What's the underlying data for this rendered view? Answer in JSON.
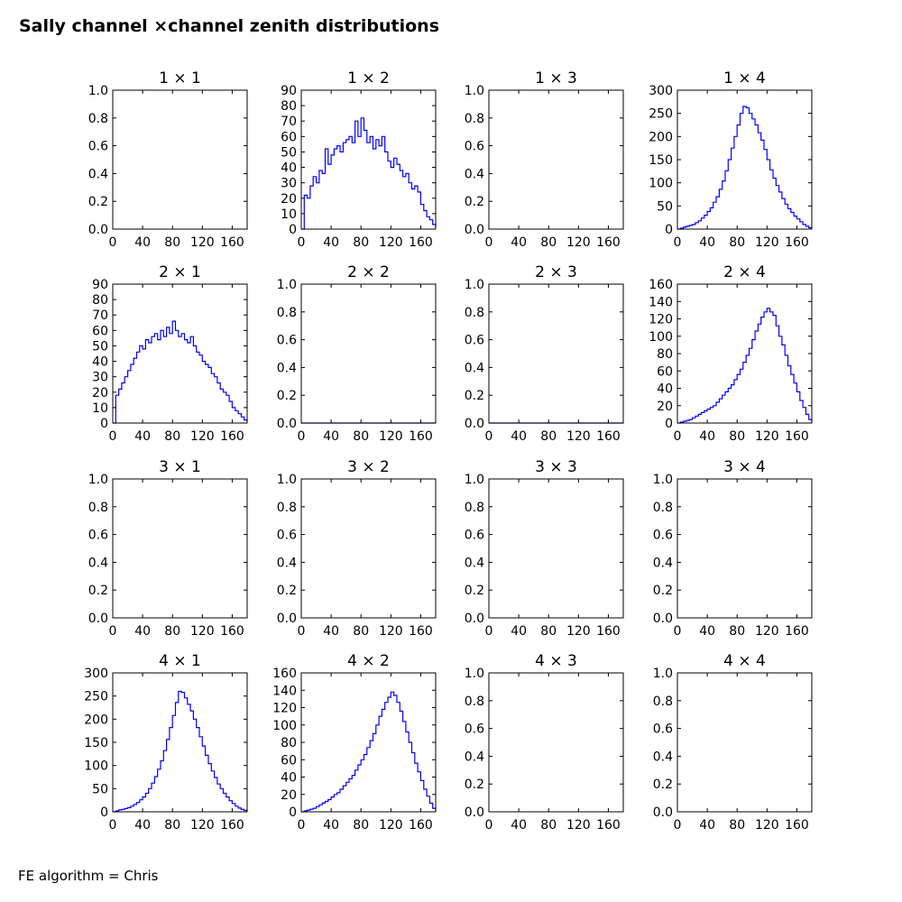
{
  "figure": {
    "title": "Sally channel ×channel zenith distributions",
    "footer": "FE algorithm = Chris"
  },
  "colors": {
    "line": "#0000ff",
    "axes": "#000000",
    "background": "#ffffff"
  },
  "chart_data": [
    {
      "type": "line",
      "title": "1  × 1",
      "xlim": [
        0,
        180
      ],
      "ylim": [
        0,
        1
      ],
      "xticks": [
        "0",
        "40",
        "80",
        "120",
        "160"
      ],
      "yticks": [
        "0.0",
        "0.2",
        "0.4",
        "0.6",
        "0.8",
        "1.0"
      ],
      "series": []
    },
    {
      "type": "line",
      "title": "1  × 2",
      "xlim": [
        0,
        180
      ],
      "ylim": [
        0,
        90
      ],
      "xticks": [
        "0",
        "40",
        "80",
        "120",
        "160"
      ],
      "yticks": [
        "0",
        "10",
        "20",
        "30",
        "40",
        "50",
        "60",
        "70",
        "80",
        "90"
      ],
      "series": [
        {
          "x": [
            0,
            4,
            8,
            12,
            16,
            20,
            24,
            28,
            32,
            36,
            40,
            44,
            48,
            52,
            56,
            60,
            64,
            68,
            72,
            76,
            80,
            84,
            88,
            92,
            96,
            100,
            104,
            108,
            112,
            116,
            120,
            124,
            128,
            132,
            136,
            140,
            144,
            148,
            152,
            156,
            160,
            164,
            168,
            172,
            176,
            180
          ],
          "values": [
            0,
            22,
            20,
            28,
            34,
            30,
            38,
            36,
            52,
            42,
            48,
            52,
            54,
            50,
            56,
            58,
            60,
            56,
            70,
            60,
            72,
            64,
            56,
            60,
            52,
            58,
            54,
            60,
            50,
            44,
            40,
            46,
            42,
            38,
            34,
            36,
            30,
            26,
            28,
            24,
            16,
            12,
            8,
            6,
            3,
            1
          ]
        }
      ]
    },
    {
      "type": "line",
      "title": "1  × 3",
      "xlim": [
        0,
        180
      ],
      "ylim": [
        0,
        1
      ],
      "xticks": [
        "0",
        "40",
        "80",
        "120",
        "160"
      ],
      "yticks": [
        "0.0",
        "0.2",
        "0.4",
        "0.6",
        "0.8",
        "1.0"
      ],
      "series": []
    },
    {
      "type": "line",
      "title": "1  × 4",
      "xlim": [
        0,
        180
      ],
      "ylim": [
        0,
        300
      ],
      "xticks": [
        "0",
        "40",
        "80",
        "120",
        "160"
      ],
      "yticks": [
        "0",
        "50",
        "100",
        "150",
        "200",
        "250",
        "300"
      ],
      "series": [
        {
          "x": [
            0,
            4,
            8,
            12,
            16,
            20,
            24,
            28,
            32,
            36,
            40,
            44,
            48,
            52,
            56,
            60,
            64,
            68,
            72,
            76,
            80,
            84,
            88,
            92,
            96,
            100,
            104,
            108,
            112,
            116,
            120,
            124,
            128,
            132,
            136,
            140,
            144,
            148,
            152,
            156,
            160,
            164,
            168,
            172,
            176,
            180
          ],
          "values": [
            0,
            2,
            4,
            6,
            8,
            10,
            14,
            18,
            24,
            30,
            38,
            46,
            58,
            70,
            86,
            104,
            126,
            150,
            175,
            200,
            225,
            250,
            265,
            262,
            250,
            238,
            225,
            208,
            192,
            172,
            150,
            128,
            110,
            94,
            80,
            66,
            54,
            44,
            36,
            28,
            22,
            16,
            10,
            6,
            3,
            1
          ]
        }
      ]
    },
    {
      "type": "line",
      "title": "2  × 1",
      "xlim": [
        0,
        180
      ],
      "ylim": [
        0,
        90
      ],
      "xticks": [
        "0",
        "40",
        "80",
        "120",
        "160"
      ],
      "yticks": [
        "0",
        "10",
        "20",
        "30",
        "40",
        "50",
        "60",
        "70",
        "80",
        "90"
      ],
      "series": [
        {
          "x": [
            0,
            4,
            8,
            12,
            16,
            20,
            24,
            28,
            32,
            36,
            40,
            44,
            48,
            52,
            56,
            60,
            64,
            68,
            72,
            76,
            80,
            84,
            88,
            92,
            96,
            100,
            104,
            108,
            112,
            116,
            120,
            124,
            128,
            132,
            136,
            140,
            144,
            148,
            152,
            156,
            160,
            164,
            168,
            172,
            176,
            180
          ],
          "values": [
            0,
            18,
            22,
            26,
            30,
            34,
            38,
            42,
            46,
            50,
            48,
            54,
            52,
            56,
            58,
            54,
            60,
            56,
            62,
            58,
            66,
            60,
            56,
            58,
            54,
            52,
            56,
            50,
            46,
            44,
            40,
            38,
            36,
            32,
            30,
            26,
            22,
            20,
            18,
            14,
            10,
            8,
            6,
            4,
            2,
            1
          ]
        }
      ]
    },
    {
      "type": "line",
      "title": "2  × 2",
      "xlim": [
        0,
        180
      ],
      "ylim": [
        0,
        1
      ],
      "xticks": [
        "0",
        "40",
        "80",
        "120",
        "160"
      ],
      "yticks": [
        "0.0",
        "0.2",
        "0.4",
        "0.6",
        "0.8",
        "1.0"
      ],
      "series": [
        {
          "x": [
            0,
            180
          ],
          "values": [
            0,
            0
          ]
        }
      ]
    },
    {
      "type": "line",
      "title": "2  × 3",
      "xlim": [
        0,
        180
      ],
      "ylim": [
        0,
        1
      ],
      "xticks": [
        "0",
        "40",
        "80",
        "120",
        "160"
      ],
      "yticks": [
        "0.0",
        "0.2",
        "0.4",
        "0.6",
        "0.8",
        "1.0"
      ],
      "series": [
        {
          "x": [
            0,
            180
          ],
          "values": [
            0,
            0
          ]
        }
      ]
    },
    {
      "type": "line",
      "title": "2  × 4",
      "xlim": [
        0,
        180
      ],
      "ylim": [
        0,
        160
      ],
      "xticks": [
        "0",
        "40",
        "80",
        "120",
        "160"
      ],
      "yticks": [
        "0",
        "20",
        "40",
        "60",
        "80",
        "100",
        "120",
        "140",
        "160"
      ],
      "series": [
        {
          "x": [
            0,
            4,
            8,
            12,
            16,
            20,
            24,
            28,
            32,
            36,
            40,
            44,
            48,
            52,
            56,
            60,
            64,
            68,
            72,
            76,
            80,
            84,
            88,
            92,
            96,
            100,
            104,
            108,
            112,
            116,
            120,
            124,
            128,
            132,
            136,
            140,
            144,
            148,
            152,
            156,
            160,
            164,
            168,
            172,
            176,
            180
          ],
          "values": [
            0,
            1,
            2,
            3,
            4,
            6,
            8,
            10,
            12,
            14,
            16,
            18,
            20,
            24,
            28,
            32,
            36,
            40,
            44,
            50,
            56,
            62,
            70,
            78,
            86,
            96,
            106,
            114,
            122,
            128,
            132,
            128,
            124,
            112,
            100,
            90,
            78,
            66,
            56,
            46,
            36,
            26,
            18,
            10,
            4,
            1
          ]
        }
      ]
    },
    {
      "type": "line",
      "title": "3  × 1",
      "xlim": [
        0,
        180
      ],
      "ylim": [
        0,
        1
      ],
      "xticks": [
        "0",
        "40",
        "80",
        "120",
        "160"
      ],
      "yticks": [
        "0.0",
        "0.2",
        "0.4",
        "0.6",
        "0.8",
        "1.0"
      ],
      "series": []
    },
    {
      "type": "line",
      "title": "3  × 2",
      "xlim": [
        0,
        180
      ],
      "ylim": [
        0,
        1
      ],
      "xticks": [
        "0",
        "40",
        "80",
        "120",
        "160"
      ],
      "yticks": [
        "0.0",
        "0.2",
        "0.4",
        "0.6",
        "0.8",
        "1.0"
      ],
      "series": []
    },
    {
      "type": "line",
      "title": "3  × 3",
      "xlim": [
        0,
        180
      ],
      "ylim": [
        0,
        1
      ],
      "xticks": [
        "0",
        "40",
        "80",
        "120",
        "160"
      ],
      "yticks": [
        "0.0",
        "0.2",
        "0.4",
        "0.6",
        "0.8",
        "1.0"
      ],
      "series": []
    },
    {
      "type": "line",
      "title": "3  × 4",
      "xlim": [
        0,
        180
      ],
      "ylim": [
        0,
        1
      ],
      "xticks": [
        "0",
        "40",
        "80",
        "120",
        "160"
      ],
      "yticks": [
        "0.0",
        "0.2",
        "0.4",
        "0.6",
        "0.8",
        "1.0"
      ],
      "series": []
    },
    {
      "type": "line",
      "title": "4  × 1",
      "xlim": [
        0,
        180
      ],
      "ylim": [
        0,
        300
      ],
      "xticks": [
        "0",
        "40",
        "80",
        "120",
        "160"
      ],
      "yticks": [
        "0",
        "50",
        "100",
        "150",
        "200",
        "250",
        "300"
      ],
      "series": [
        {
          "x": [
            0,
            4,
            8,
            12,
            16,
            20,
            24,
            28,
            32,
            36,
            40,
            44,
            48,
            52,
            56,
            60,
            64,
            68,
            72,
            76,
            80,
            84,
            88,
            92,
            96,
            100,
            104,
            108,
            112,
            116,
            120,
            124,
            128,
            132,
            136,
            140,
            144,
            148,
            152,
            156,
            160,
            164,
            168,
            172,
            176,
            180
          ],
          "values": [
            0,
            2,
            4,
            5,
            7,
            9,
            12,
            16,
            20,
            26,
            32,
            40,
            50,
            62,
            76,
            92,
            110,
            132,
            156,
            182,
            208,
            236,
            260,
            258,
            246,
            232,
            218,
            200,
            182,
            162,
            142,
            122,
            104,
            88,
            74,
            60,
            50,
            40,
            32,
            24,
            18,
            12,
            8,
            5,
            3,
            1
          ]
        }
      ]
    },
    {
      "type": "line",
      "title": "4  × 2",
      "xlim": [
        0,
        180
      ],
      "ylim": [
        0,
        160
      ],
      "xticks": [
        "0",
        "40",
        "80",
        "120",
        "160"
      ],
      "yticks": [
        "0",
        "20",
        "40",
        "60",
        "80",
        "100",
        "120",
        "140",
        "160"
      ],
      "series": [
        {
          "x": [
            0,
            4,
            8,
            12,
            16,
            20,
            24,
            28,
            32,
            36,
            40,
            44,
            48,
            52,
            56,
            60,
            64,
            68,
            72,
            76,
            80,
            84,
            88,
            92,
            96,
            100,
            104,
            108,
            112,
            116,
            120,
            124,
            128,
            132,
            136,
            140,
            144,
            148,
            152,
            156,
            160,
            164,
            168,
            172,
            176,
            180
          ],
          "values": [
            0,
            1,
            2,
            3,
            4,
            6,
            8,
            10,
            12,
            14,
            17,
            20,
            22,
            26,
            30,
            34,
            38,
            42,
            48,
            54,
            60,
            66,
            74,
            82,
            90,
            100,
            110,
            118,
            126,
            132,
            138,
            134,
            126,
            116,
            104,
            92,
            80,
            68,
            56,
            46,
            36,
            26,
            18,
            10,
            4,
            1
          ]
        }
      ]
    },
    {
      "type": "line",
      "title": "4  × 3",
      "xlim": [
        0,
        180
      ],
      "ylim": [
        0,
        1
      ],
      "xticks": [
        "0",
        "40",
        "80",
        "120",
        "160"
      ],
      "yticks": [
        "0.0",
        "0.2",
        "0.4",
        "0.6",
        "0.8",
        "1.0"
      ],
      "series": []
    },
    {
      "type": "line",
      "title": "4  × 4",
      "xlim": [
        0,
        180
      ],
      "ylim": [
        0,
        1
      ],
      "xticks": [
        "0",
        "40",
        "80",
        "120",
        "160"
      ],
      "yticks": [
        "0.0",
        "0.2",
        "0.4",
        "0.6",
        "0.8",
        "1.0"
      ],
      "series": []
    }
  ]
}
